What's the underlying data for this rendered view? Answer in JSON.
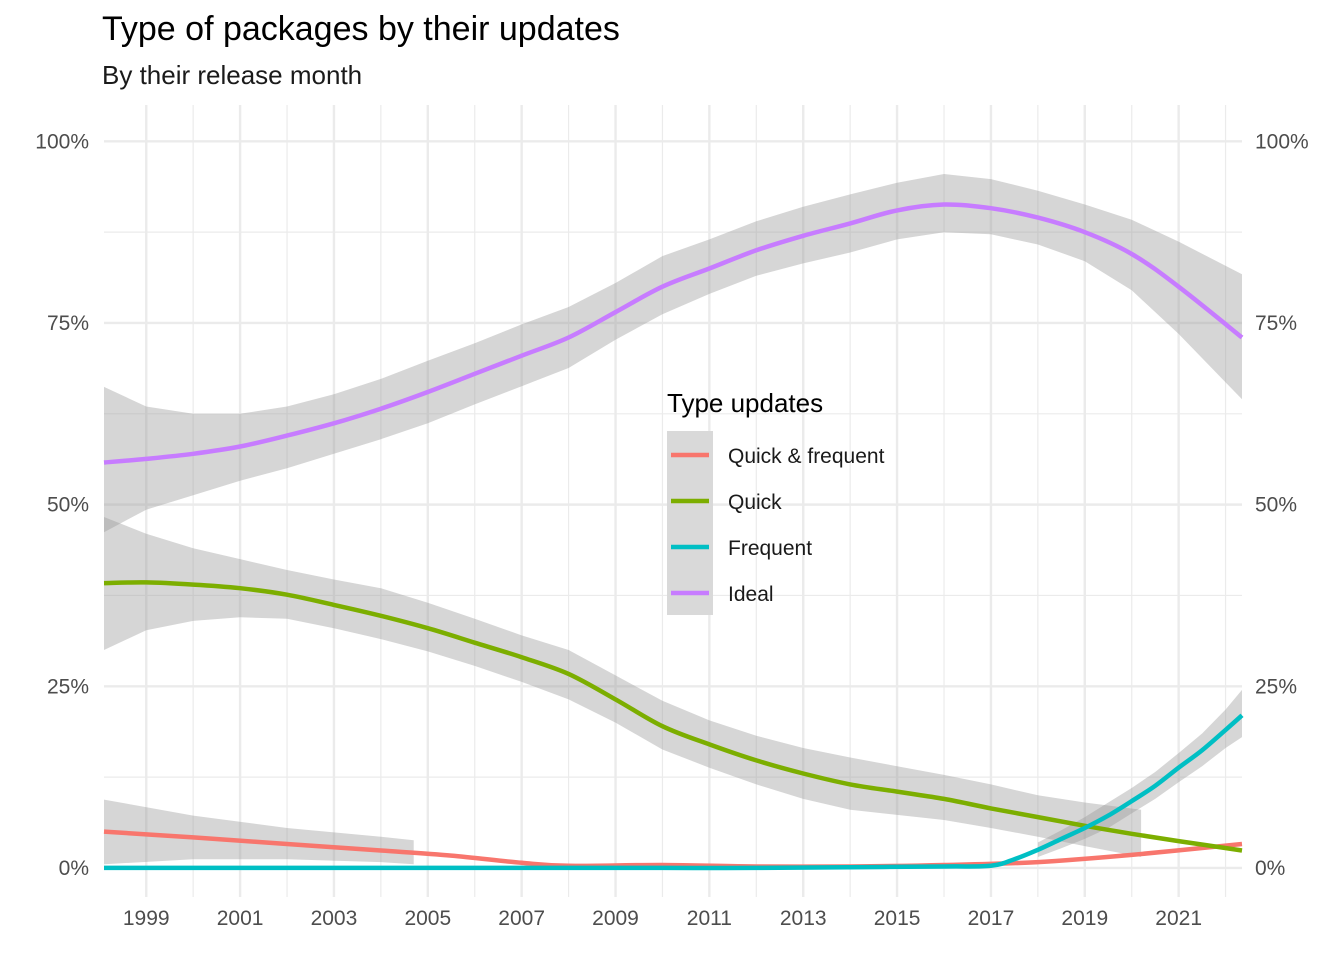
{
  "chart_data": {
    "type": "line",
    "title": "Type of packages by their updates",
    "subtitle": "By their release month",
    "xlabel": "",
    "ylabel": "",
    "xlim": [
      1998.1,
      2022.35
    ],
    "ylim": [
      -0.04,
      1.05
    ],
    "x_ticks": [
      1999,
      2001,
      2003,
      2005,
      2007,
      2009,
      2011,
      2013,
      2015,
      2017,
      2019,
      2021
    ],
    "y_ticks": [
      0,
      0.25,
      0.5,
      0.75,
      1.0
    ],
    "y_tick_labels": [
      "0%",
      "25%",
      "50%",
      "75%",
      "100%"
    ],
    "grid": true,
    "legend": {
      "title": "Type updates",
      "position": "center",
      "entries": [
        "Quick & frequent",
        "Quick",
        "Frequent",
        "Ideal"
      ]
    },
    "series": [
      {
        "name": "Quick & frequent",
        "color": "#F8766D",
        "x": [
          1998.1,
          2000,
          2002,
          2004,
          2005.5,
          2007,
          2008,
          2010,
          2012,
          2014,
          2016,
          2018,
          2020,
          2022.35
        ],
        "values": [
          0.05,
          0.042,
          0.033,
          0.024,
          0.017,
          0.007,
          0.003,
          0.004,
          0.002,
          0.002,
          0.004,
          0.008,
          0.018,
          0.033
        ],
        "band_x": [
          1998.1,
          2000,
          2002,
          2004,
          2004.7
        ],
        "band_lower": [
          0.005,
          0.012,
          0.012,
          0.008,
          0.005
        ],
        "band_upper": [
          0.094,
          0.072,
          0.055,
          0.043,
          0.038
        ]
      },
      {
        "name": "Quick",
        "color": "#7CAE00",
        "x": [
          1998.1,
          1999,
          2000,
          2001,
          2002,
          2003,
          2004,
          2005,
          2006,
          2007,
          2008,
          2009,
          2010,
          2011,
          2012,
          2013,
          2014,
          2015,
          2016,
          2017,
          2018,
          2019,
          2020,
          2021,
          2022.35
        ],
        "values": [
          0.392,
          0.393,
          0.39,
          0.385,
          0.376,
          0.362,
          0.347,
          0.33,
          0.31,
          0.29,
          0.267,
          0.232,
          0.195,
          0.17,
          0.148,
          0.13,
          0.115,
          0.105,
          0.095,
          0.082,
          0.07,
          0.058,
          0.047,
          0.037,
          0.024
        ],
        "band_x": [
          1998.1,
          1999,
          2000,
          2001,
          2002,
          2003,
          2004,
          2005,
          2006,
          2007,
          2008,
          2009,
          2010,
          2011,
          2012,
          2013,
          2014,
          2015,
          2016,
          2017,
          2018,
          2019,
          2020.2
        ],
        "band_lower": [
          0.3,
          0.327,
          0.34,
          0.345,
          0.343,
          0.33,
          0.315,
          0.298,
          0.278,
          0.256,
          0.232,
          0.2,
          0.163,
          0.138,
          0.115,
          0.095,
          0.08,
          0.073,
          0.066,
          0.055,
          0.043,
          0.03,
          0.015
        ],
        "band_upper": [
          0.483,
          0.46,
          0.44,
          0.425,
          0.41,
          0.397,
          0.385,
          0.365,
          0.343,
          0.32,
          0.3,
          0.265,
          0.23,
          0.203,
          0.182,
          0.165,
          0.152,
          0.14,
          0.128,
          0.115,
          0.1,
          0.09,
          0.08
        ]
      },
      {
        "name": "Frequent",
        "color": "#00BFC4",
        "x": [
          1998.1,
          2000,
          2002,
          2004,
          2006,
          2008,
          2010,
          2012,
          2014,
          2016,
          2017,
          2017.5,
          2018,
          2018.5,
          2019,
          2019.5,
          2020,
          2020.5,
          2021,
          2021.5,
          2022,
          2022.35
        ],
        "values": [
          0,
          0,
          0,
          0,
          0,
          0,
          0,
          0,
          0.001,
          0.002,
          0.003,
          0.012,
          0.025,
          0.04,
          0.055,
          0.072,
          0.092,
          0.113,
          0.138,
          0.162,
          0.19,
          0.21
        ],
        "band_x": [
          2018,
          2018.5,
          2019,
          2019.5,
          2020,
          2020.5,
          2021,
          2021.5,
          2022,
          2022.35
        ],
        "band_lower": [
          0.015,
          0.027,
          0.04,
          0.055,
          0.075,
          0.095,
          0.118,
          0.14,
          0.165,
          0.18
        ],
        "band_upper": [
          0.035,
          0.052,
          0.07,
          0.09,
          0.11,
          0.132,
          0.158,
          0.185,
          0.218,
          0.245
        ]
      },
      {
        "name": "Ideal",
        "color": "#C77CFF",
        "x": [
          1998.1,
          1999,
          2000,
          2001,
          2002,
          2003,
          2004,
          2005,
          2006,
          2007,
          2008,
          2009,
          2010,
          2011,
          2012,
          2013,
          2014,
          2015,
          2016,
          2017,
          2018,
          2019,
          2020,
          2021,
          2022.35
        ],
        "values": [
          0.558,
          0.563,
          0.57,
          0.58,
          0.595,
          0.612,
          0.632,
          0.655,
          0.68,
          0.705,
          0.73,
          0.765,
          0.8,
          0.825,
          0.85,
          0.87,
          0.887,
          0.905,
          0.913,
          0.908,
          0.895,
          0.875,
          0.845,
          0.8,
          0.73
        ],
        "band_lower": [
          0.462,
          0.493,
          0.513,
          0.533,
          0.55,
          0.57,
          0.59,
          0.612,
          0.638,
          0.663,
          0.688,
          0.727,
          0.762,
          0.79,
          0.815,
          0.832,
          0.847,
          0.865,
          0.875,
          0.872,
          0.858,
          0.835,
          0.795,
          0.735,
          0.645
        ],
        "band_upper": [
          0.662,
          0.635,
          0.625,
          0.625,
          0.635,
          0.652,
          0.673,
          0.698,
          0.722,
          0.748,
          0.772,
          0.805,
          0.842,
          0.865,
          0.89,
          0.91,
          0.927,
          0.943,
          0.955,
          0.948,
          0.932,
          0.913,
          0.892,
          0.862,
          0.817
        ]
      }
    ]
  }
}
